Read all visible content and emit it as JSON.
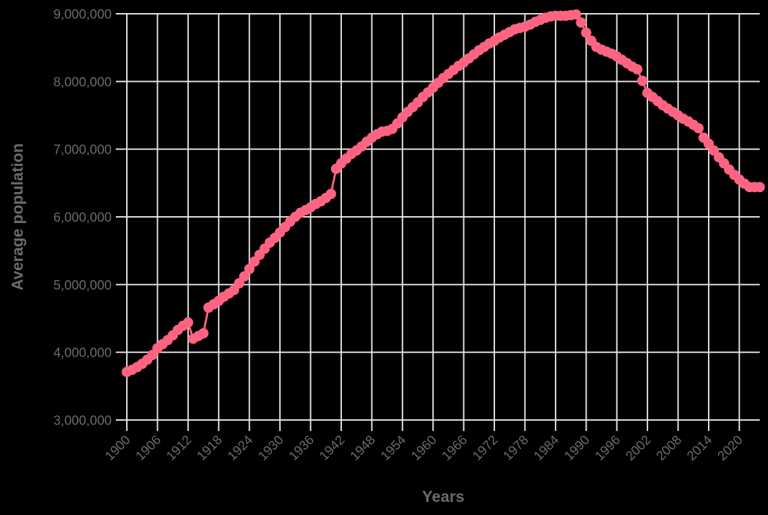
{
  "chart_data": {
    "type": "line",
    "title": "",
    "xlabel": "Years",
    "ylabel": "Average population",
    "ylim": [
      3000000,
      9000000
    ],
    "xlim": [
      1900,
      2024
    ],
    "grid": true,
    "legend": null,
    "line_color": "#ff6382",
    "y_ticks": [
      "3,000,000",
      "4,000,000",
      "5,000,000",
      "6,000,000",
      "7,000,000",
      "8,000,000",
      "9,000,000"
    ],
    "x_ticks": [
      "1900",
      "1906",
      "1912",
      "1918",
      "1924",
      "1930",
      "1936",
      "1942",
      "1948",
      "1954",
      "1960",
      "1966",
      "1972",
      "1978",
      "1984",
      "1990",
      "1996",
      "2002",
      "2008",
      "2014",
      "2020"
    ],
    "x": [
      1900,
      1901,
      1902,
      1903,
      1904,
      1905,
      1906,
      1907,
      1908,
      1909,
      1910,
      1911,
      1912,
      1913,
      1914,
      1915,
      1916,
      1917,
      1918,
      1919,
      1920,
      1921,
      1922,
      1923,
      1924,
      1925,
      1926,
      1927,
      1928,
      1929,
      1930,
      1931,
      1932,
      1933,
      1934,
      1935,
      1936,
      1937,
      1938,
      1939,
      1940,
      1941,
      1942,
      1943,
      1944,
      1945,
      1946,
      1947,
      1948,
      1949,
      1950,
      1951,
      1952,
      1953,
      1954,
      1955,
      1956,
      1957,
      1958,
      1959,
      1960,
      1961,
      1962,
      1963,
      1964,
      1965,
      1966,
      1967,
      1968,
      1969,
      1970,
      1971,
      1972,
      1973,
      1974,
      1975,
      1976,
      1977,
      1978,
      1979,
      1980,
      1981,
      1982,
      1983,
      1984,
      1985,
      1986,
      1987,
      1988,
      1989,
      1990,
      1991,
      1992,
      1993,
      1994,
      1995,
      1996,
      1997,
      1998,
      1999,
      2000,
      2001,
      2002,
      2003,
      2004,
      2005,
      2006,
      2007,
      2008,
      2009,
      2010,
      2011,
      2012,
      2013,
      2014,
      2015,
      2016,
      2017,
      2018,
      2019,
      2020,
      2021,
      2022,
      2023,
      2024
    ],
    "series": [
      {
        "name": "Average population",
        "values": [
          3710000,
          3740000,
          3780000,
          3830000,
          3890000,
          3960000,
          4060000,
          4120000,
          4180000,
          4250000,
          4330000,
          4390000,
          4440000,
          4200000,
          4240000,
          4280000,
          4660000,
          4710000,
          4760000,
          4820000,
          4870000,
          4920000,
          5020000,
          5120000,
          5230000,
          5340000,
          5440000,
          5530000,
          5620000,
          5690000,
          5770000,
          5850000,
          5930000,
          6000000,
          6060000,
          6100000,
          6140000,
          6190000,
          6230000,
          6280000,
          6340000,
          6710000,
          6790000,
          6860000,
          6930000,
          6980000,
          7040000,
          7110000,
          7170000,
          7220000,
          7260000,
          7270000,
          7300000,
          7380000,
          7470000,
          7550000,
          7620000,
          7690000,
          7770000,
          7840000,
          7910000,
          7980000,
          8050000,
          8110000,
          8170000,
          8230000,
          8280000,
          8340000,
          8400000,
          8460000,
          8510000,
          8560000,
          8600000,
          8650000,
          8690000,
          8730000,
          8770000,
          8790000,
          8810000,
          8840000,
          8880000,
          8910000,
          8940000,
          8960000,
          8970000,
          8970000,
          8970000,
          8980000,
          8990000,
          8870000,
          8720000,
          8600000,
          8510000,
          8470000,
          8440000,
          8410000,
          8370000,
          8320000,
          8270000,
          8220000,
          8180000,
          8010000,
          7830000,
          7770000,
          7710000,
          7650000,
          7600000,
          7550000,
          7500000,
          7450000,
          7410000,
          7360000,
          7310000,
          7170000,
          7080000,
          6980000,
          6880000,
          6790000,
          6700000,
          6620000,
          6550000,
          6490000,
          6440000,
          6440000,
          6440000
        ]
      }
    ]
  }
}
